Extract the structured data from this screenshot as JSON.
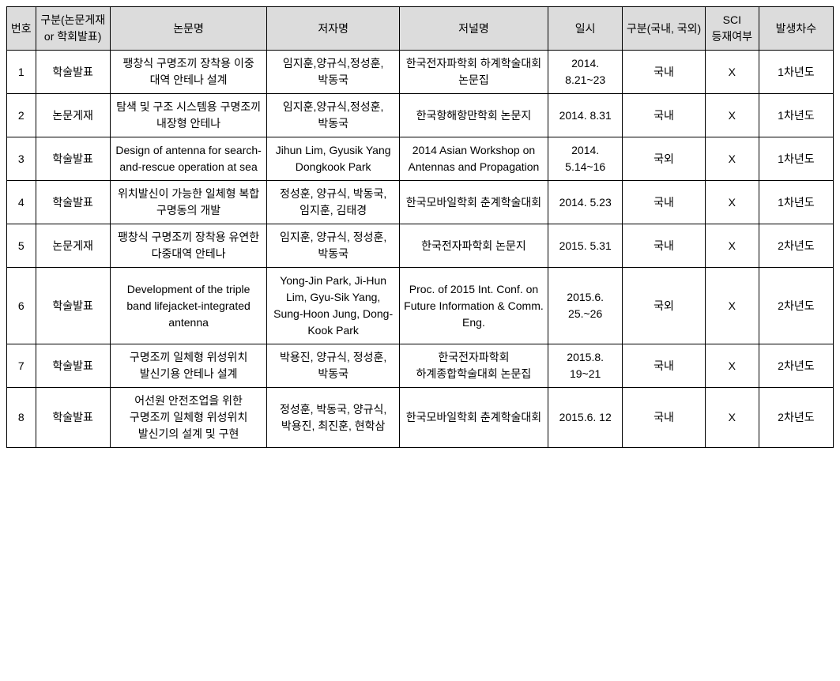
{
  "table": {
    "columns": [
      "번호",
      "구분(논문게재 or 학회발표)",
      "논문명",
      "저자명",
      "저널명",
      "일시",
      "구분(국내, 국외)",
      "SCI 등재여부",
      "발생차수"
    ],
    "rows": [
      {
        "no": "1",
        "type": "학술발표",
        "title": "팽창식 구명조끼 장착용 이중 대역 안테나 설계",
        "authors": "임지훈,양규식,정성훈,박동국",
        "journal": "한국전자파학회 하계학술대회 논문집",
        "date": "2014. 8.21~23",
        "loc": "국내",
        "sci": "X",
        "year": "1차년도"
      },
      {
        "no": "2",
        "type": "논문게재",
        "title": "탐색 및 구조 시스템용 구명조끼 내장형 안테나",
        "authors": "임지훈,양규식,정성훈,박동국",
        "journal": "한국항해항만학회 논문지",
        "date": "2014. 8.31",
        "loc": "국내",
        "sci": "X",
        "year": "1차년도"
      },
      {
        "no": "3",
        "type": "학술발표",
        "title": "Design of antenna for search-and-rescue operation at sea",
        "authors": "Jihun Lim, Gyusik Yang Dongkook Park",
        "journal": "2014 Asian Workshop on Antennas and Propagation",
        "date": "2014. 5.14~16",
        "loc": "국외",
        "sci": "X",
        "year": "1차년도"
      },
      {
        "no": "4",
        "type": "학술발표",
        "title": "위치발신이 가능한 일체형 복합 구명동의 개발",
        "authors": "정성훈, 양규식, 박동국, 임지훈, 김태경",
        "journal": "한국모바일학회 춘계학술대회",
        "date": "2014. 5.23",
        "loc": "국내",
        "sci": "X",
        "year": "1차년도"
      },
      {
        "no": "5",
        "type": "논문게재",
        "title": "팽창식 구명조끼 장착용 유연한 다중대역 안테나",
        "authors": "임지훈, 양규식, 정성훈, 박동국",
        "journal": "한국전자파학회 논문지",
        "date": "2015. 5.31",
        "loc": "국내",
        "sci": "X",
        "year": "2차년도"
      },
      {
        "no": "6",
        "type": "학술발표",
        "title": "Development of the triple band lifejacket-integrated antenna",
        "authors": "Yong-Jin Park, Ji-Hun Lim, Gyu-Sik Yang, Sung-Hoon Jung, Dong-Kook Park",
        "journal": "Proc. of 2015 Int. Conf. on Future Information & Comm. Eng.",
        "date": "2015.6. 25.~26",
        "loc": "국외",
        "sci": "X",
        "year": "2차년도"
      },
      {
        "no": "7",
        "type": "학술발표",
        "title": "구명조끼 일체형 위성위치 발신기용 안테나 설계",
        "authors": "박용진, 양규식, 정성훈, 박동국",
        "journal": "한국전자파학회 하계종합학술대회 논문집",
        "date": "2015.8. 19~21",
        "loc": "국내",
        "sci": "X",
        "year": "2차년도"
      },
      {
        "no": "8",
        "type": "학술발표",
        "title": "어선원 안전조업을 위한 구명조끼 일체형 위성위치 발신기의 설계 및 구현",
        "authors": "정성훈, 박동국, 양규식, 박용진, 최진훈, 현학삼",
        "journal": "한국모바일학회 춘계학술대회",
        "date": "2015.6. 12",
        "loc": "국내",
        "sci": "X",
        "year": "2차년도"
      }
    ],
    "header_bg": "#dcdcdc",
    "border_color": "#000000",
    "font_size": 14
  }
}
